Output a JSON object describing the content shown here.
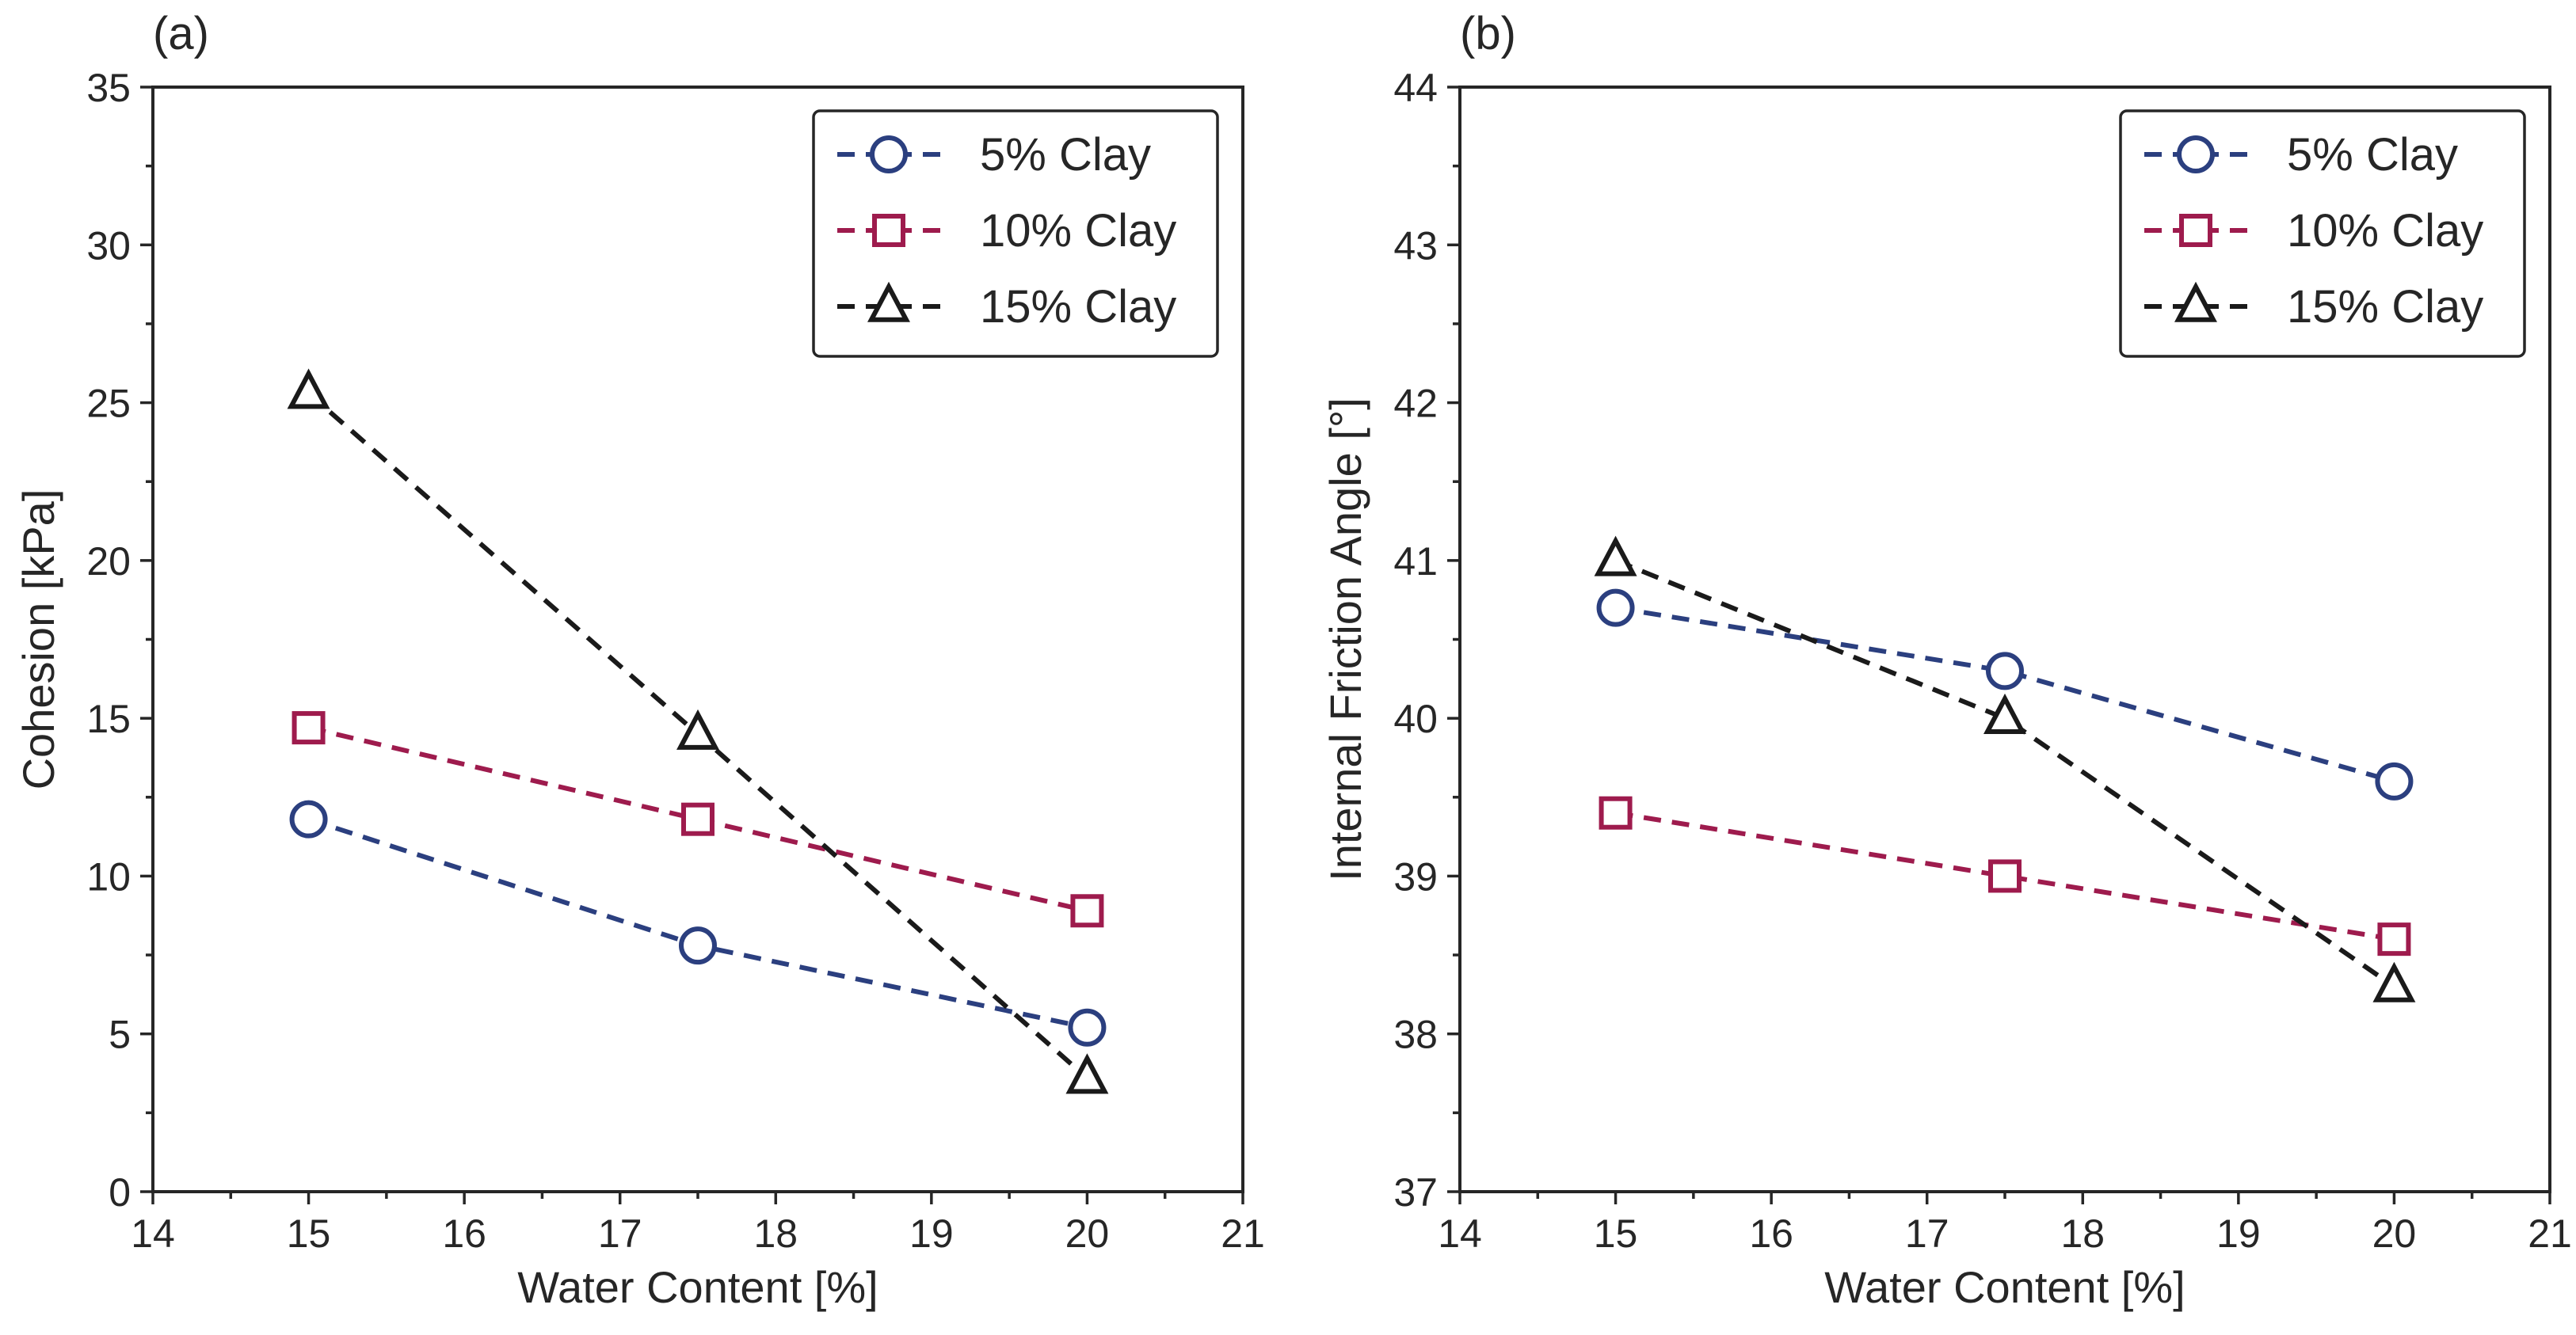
{
  "chart_data": [
    {
      "type": "line",
      "panel_label": "(a)",
      "xlabel": "Water Content [%]",
      "ylabel": "Cohesion [kPa]",
      "xlim": [
        14,
        21
      ],
      "ylim": [
        0,
        35
      ],
      "xticks": [
        14,
        15,
        16,
        17,
        18,
        19,
        20,
        21
      ],
      "yticks": [
        0,
        5,
        10,
        15,
        20,
        25,
        30,
        35
      ],
      "x": [
        15,
        17.5,
        20
      ],
      "legend_position": "top-right",
      "series": [
        {
          "name": "5% Clay",
          "values": [
            11.8,
            7.8,
            5.2
          ],
          "color": "#2b3f7f",
          "marker": "circle"
        },
        {
          "name": "10% Clay",
          "values": [
            14.7,
            11.8,
            8.9
          ],
          "color": "#9e1b4d",
          "marker": "square"
        },
        {
          "name": "15% Clay",
          "values": [
            25.3,
            14.5,
            3.6
          ],
          "color": "#1a1a1a",
          "marker": "triangle"
        }
      ]
    },
    {
      "type": "line",
      "panel_label": "(b)",
      "xlabel": "Water Content [%]",
      "ylabel": "Internal Friction Angle [°]",
      "xlim": [
        14,
        21
      ],
      "ylim": [
        37,
        44
      ],
      "xticks": [
        14,
        15,
        16,
        17,
        18,
        19,
        20,
        21
      ],
      "yticks": [
        37,
        38,
        39,
        40,
        41,
        42,
        43,
        44
      ],
      "x": [
        15,
        17.5,
        20
      ],
      "legend_position": "top-right",
      "series": [
        {
          "name": "5% Clay",
          "values": [
            40.7,
            40.3,
            39.6
          ],
          "color": "#2b3f7f",
          "marker": "circle"
        },
        {
          "name": "10% Clay",
          "values": [
            39.4,
            39.0,
            38.6
          ],
          "color": "#9e1b4d",
          "marker": "square"
        },
        {
          "name": "15% Clay",
          "values": [
            41.0,
            40.0,
            38.3
          ],
          "color": "#1a1a1a",
          "marker": "triangle"
        }
      ]
    }
  ]
}
